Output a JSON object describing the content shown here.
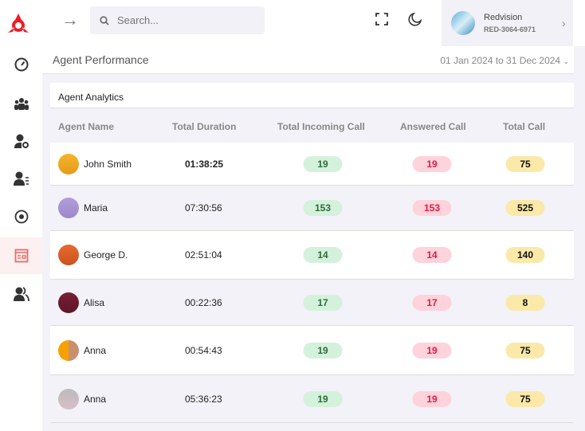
{
  "search": {
    "placeholder": "Search..."
  },
  "user": {
    "name": "Redvision",
    "id": "RED-3064-6971"
  },
  "page": {
    "title": "Agent Performance",
    "date_range": "01 Jan 2024 to 31 Dec 2024"
  },
  "card": {
    "title": "Agent Analytics"
  },
  "colors": {
    "accent": "#e8173f",
    "incoming": "#d4f1dc",
    "answered": "#ffd3dc",
    "total": "#fae9a8"
  },
  "sidebar": {
    "items": [
      "dashboard-icon",
      "team-icon",
      "user-settings-icon",
      "user-list-icon",
      "record-icon",
      "report-icon",
      "users-icon"
    ],
    "active": 5
  },
  "table": {
    "headers": [
      "Agent Name",
      "Total Duration",
      "Total Incoming Call",
      "Answered Call",
      "Total Call"
    ],
    "rows": [
      {
        "name": "John Smith",
        "duration": "01:38:25",
        "incoming": "19",
        "answered": "19",
        "total": "75"
      },
      {
        "name": "Maria",
        "duration": "07:30:56",
        "incoming": "153",
        "answered": "153",
        "total": "525"
      },
      {
        "name": "George D.",
        "duration": "02:51:04",
        "incoming": "14",
        "answered": "14",
        "total": "140"
      },
      {
        "name": "Alisa",
        "duration": "00:22:36",
        "incoming": "17",
        "answered": "17",
        "total": "8"
      },
      {
        "name": "Anna",
        "duration": "00:54:43",
        "incoming": "19",
        "answered": "19",
        "total": "75"
      },
      {
        "name": "Anna",
        "duration": "05:36:23",
        "incoming": "19",
        "answered": "19",
        "total": "75"
      }
    ]
  }
}
